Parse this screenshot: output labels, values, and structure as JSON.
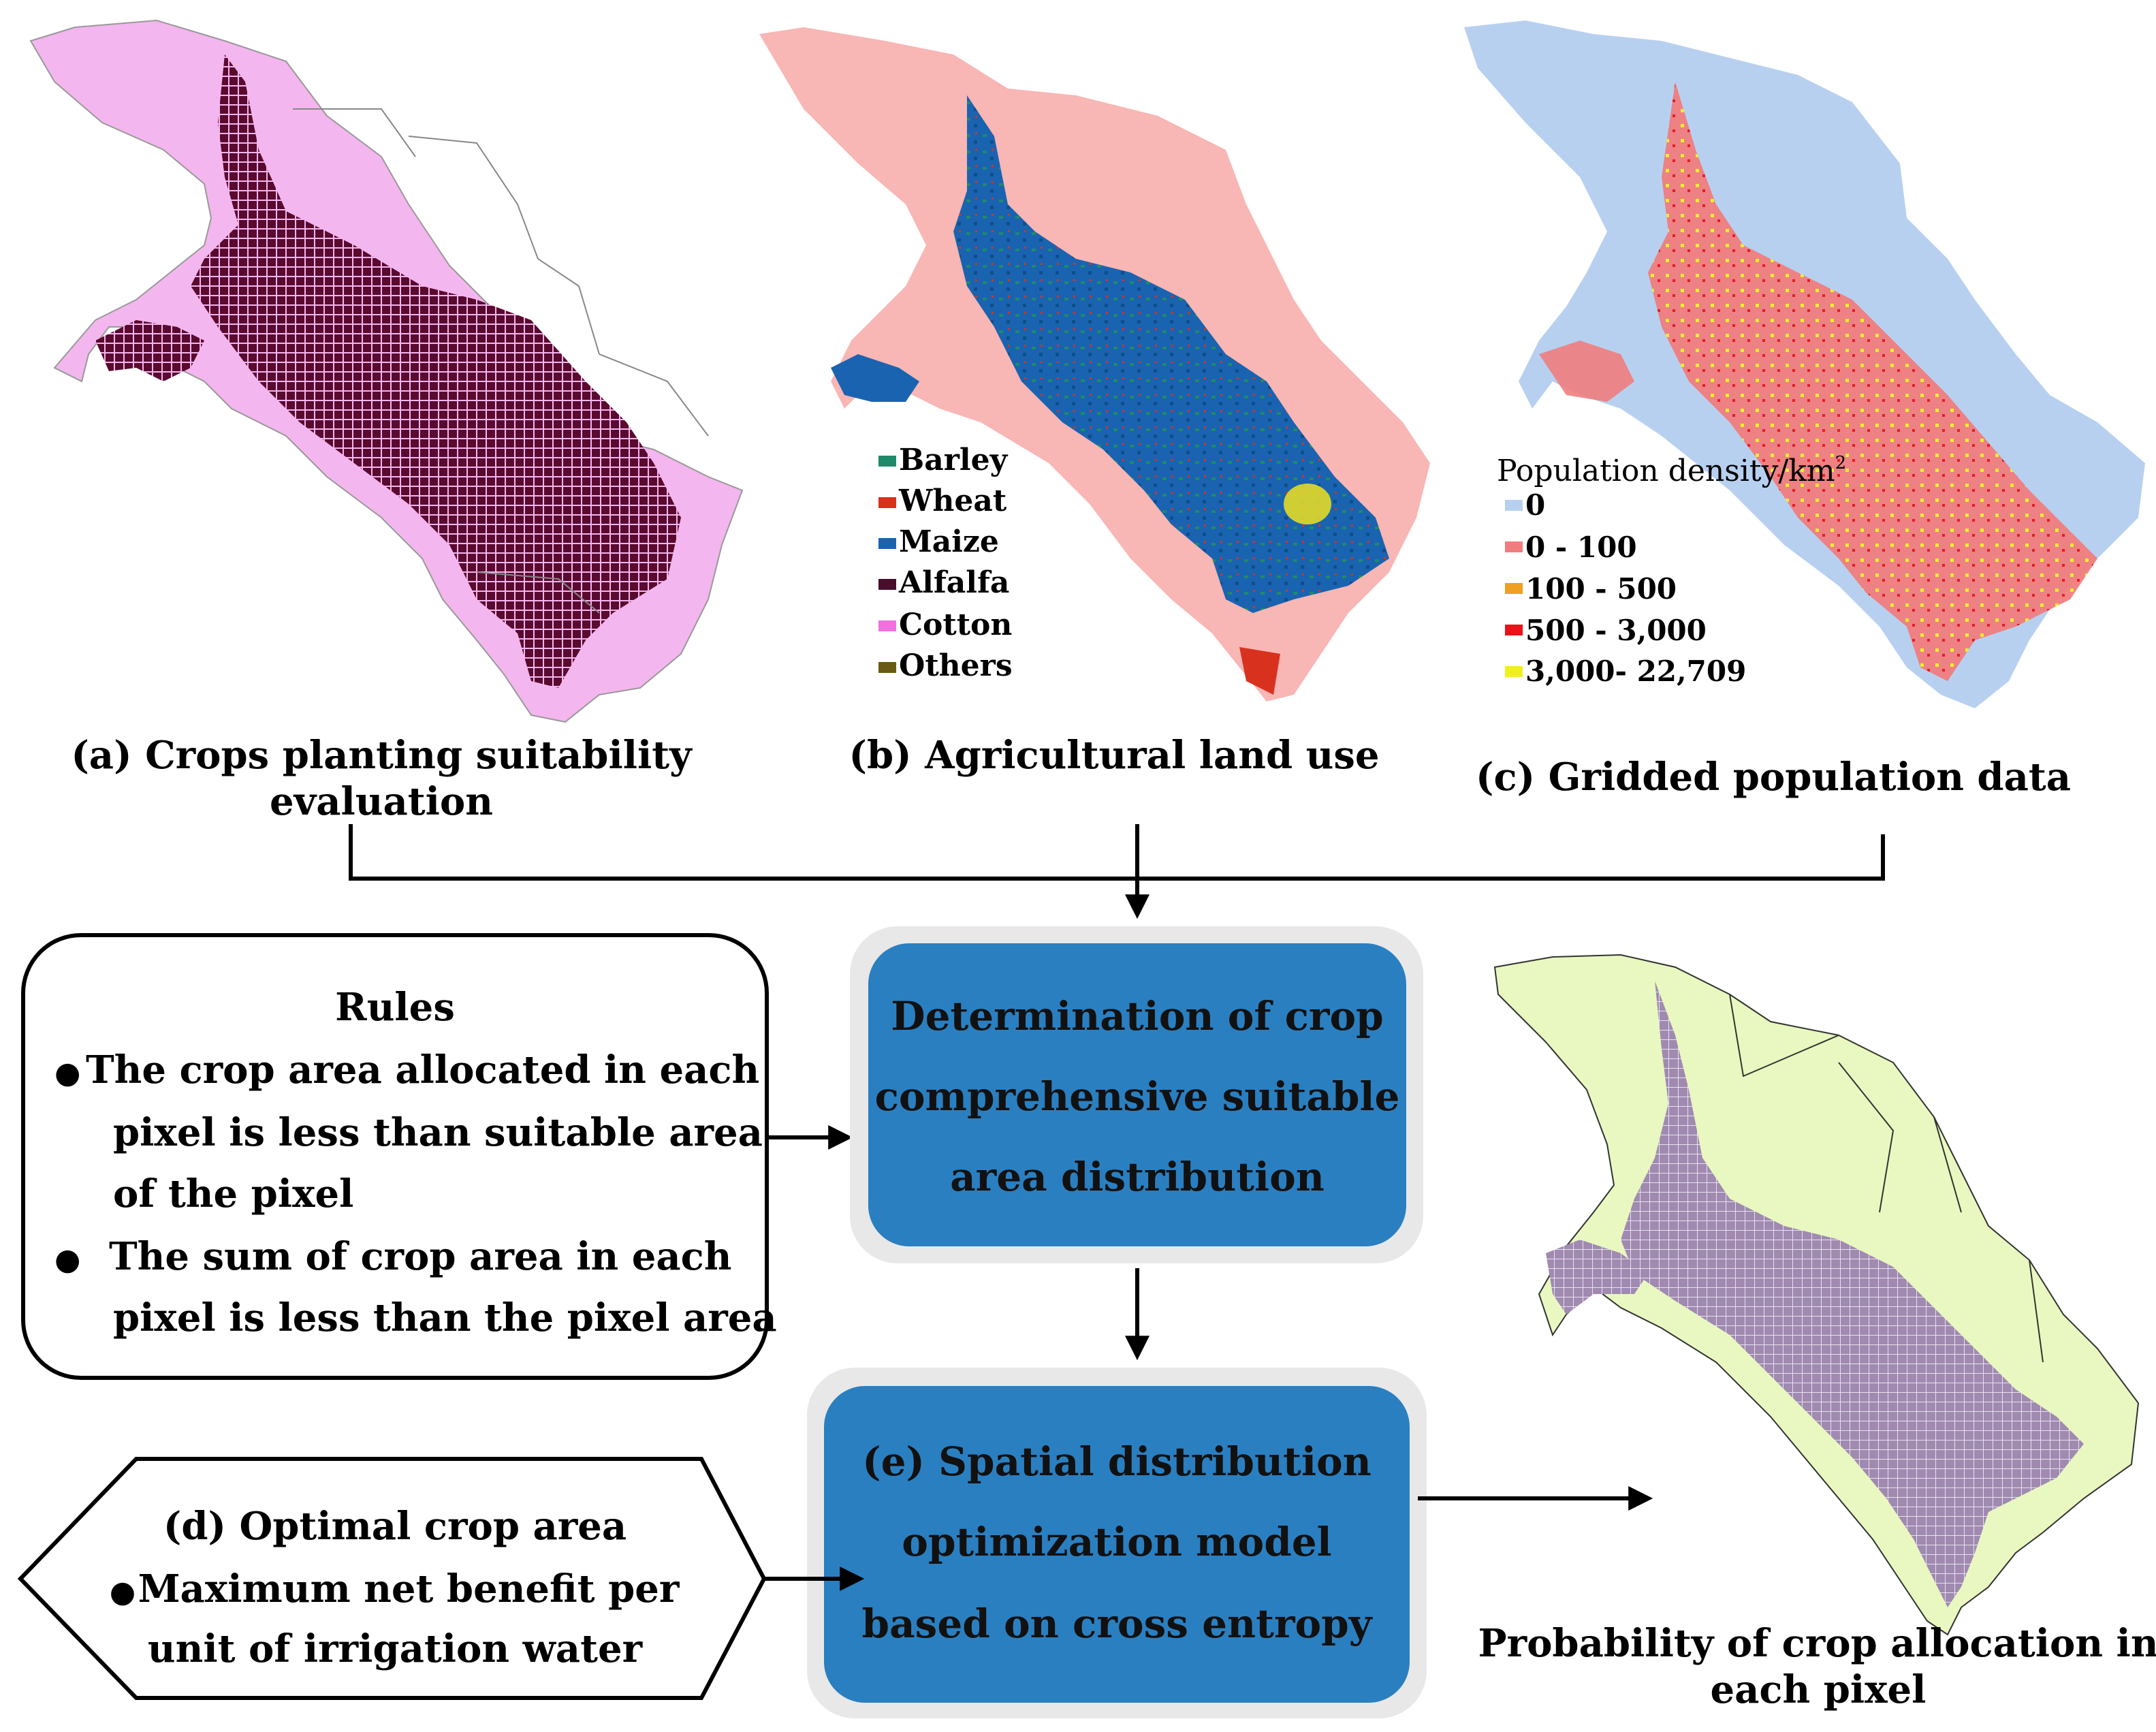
{
  "panels": {
    "a": {
      "caption_line1": "(a) Crops planting suitability",
      "caption_line2": "evaluation",
      "map_colors": {
        "region": "#f4b6ee",
        "cells": "#5a0a2e",
        "border": "#888888"
      }
    },
    "b": {
      "caption": "(b) Agricultural land use",
      "legend": [
        {
          "label": "Barley",
          "color": "#1f8a6a"
        },
        {
          "label": "Wheat",
          "color": "#d8321e"
        },
        {
          "label": "Maize",
          "color": "#1a63b0"
        },
        {
          "label": "Alfalfa",
          "color": "#4a0d2c"
        },
        {
          "label": "Cotton",
          "color": "#f070e0"
        },
        {
          "label": "Others",
          "color": "#6a5a14"
        }
      ],
      "map_colors": {
        "region": "#f8b6b4"
      }
    },
    "c": {
      "caption": "(c) Gridded population data",
      "legend_title": "Population density/km",
      "legend_title_sup": "2",
      "legend": [
        {
          "label": "0",
          "color": "#b8d0f0"
        },
        {
          "label": "0 - 100",
          "color": "#f07d7d"
        },
        {
          "label": "100 - 500",
          "color": "#f0a020"
        },
        {
          "label": "500 - 3,000",
          "color": "#e8141a"
        },
        {
          "label": "3,000- 22,709",
          "color": "#f0f020"
        }
      ]
    }
  },
  "rules": {
    "title": "Rules",
    "bullet1_line1": "The  crop  area  allocated  in  each",
    "bullet1_line2": "pixel  is  less  than  suitable  area",
    "bullet1_line3": "of the pixel",
    "bullet2_line1": "The  sum  of  crop  area  in  each",
    "bullet2_line2": "pixel is less than the pixel area",
    "bullet_symbol": "●"
  },
  "box_determination": {
    "line1": "Determination of crop",
    "line2": "comprehensive suitable",
    "line3": "area distribution"
  },
  "box_spatial": {
    "line1": "(e) Spatial distribution",
    "line2": "optimization model",
    "line3": "based on cross entropy"
  },
  "optimal": {
    "line1": "(d) Optimal crop area",
    "line2": "Maximum  net  benefit  per",
    "line3": "unit of irrigation water",
    "bullet_symbol": "●"
  },
  "output": {
    "caption_line1": "Probability of crop allocation in",
    "caption_line2": "each pixel",
    "map_colors": {
      "region": "#e8f8c0",
      "cells": "#a08ab0"
    }
  },
  "colors": {
    "box_fill": "#2a7fc0",
    "box_text": "#111111",
    "arrow": "#000000"
  }
}
